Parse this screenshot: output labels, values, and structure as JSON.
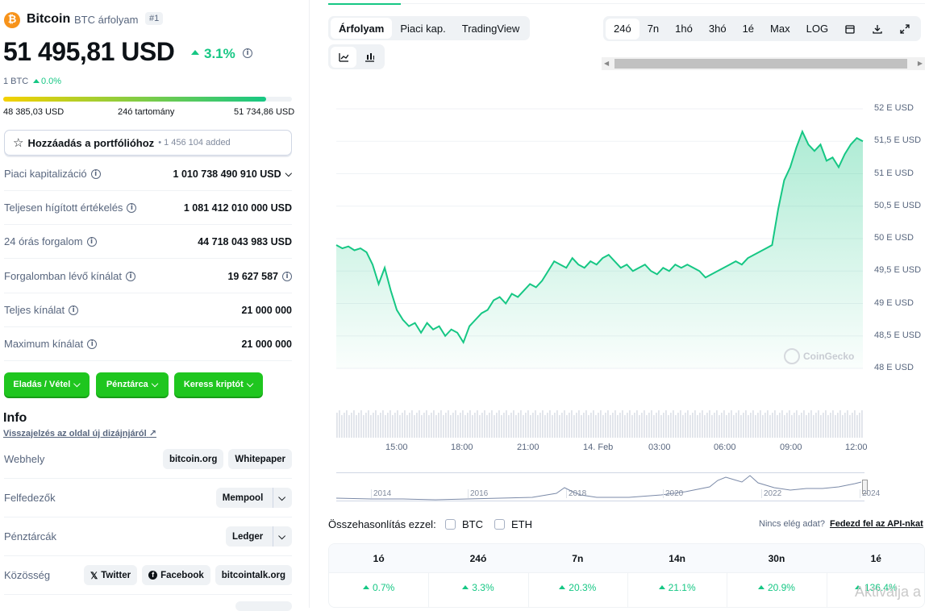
{
  "coin": {
    "name": "Bitcoin",
    "subtitle": "BTC árfolyam",
    "rank": "#1",
    "price": "51 495,81 USD",
    "change": "3.1%",
    "btc_line": "1 BTC",
    "btc_change": "0.0%",
    "colors": {
      "accent": "#f7931a",
      "green": "#16c784"
    }
  },
  "range": {
    "low": "48 385,03 USD",
    "label": "24ó tartomány",
    "high": "51 734,86 USD",
    "position": 0.91
  },
  "portfolio": {
    "label": "Hozzáadás a portfólióhoz",
    "count": "• 1 456 104 added"
  },
  "stats": [
    {
      "label": "Piaci kapitalizáció",
      "value": "1 010 738 490 910 USD"
    },
    {
      "label": "Teljesen hígított értékelés",
      "value": "1 081 412 010 000 USD"
    },
    {
      "label": "24 órás forgalom",
      "value": "44 718 043 983 USD"
    },
    {
      "label": "Forgalomban lévő kínálat",
      "value": "19 627 587"
    },
    {
      "label": "Teljes kínálat",
      "value": "21 000 000"
    },
    {
      "label": "Maximum kínálat",
      "value": "21 000 000"
    }
  ],
  "actions": {
    "buy_sell": "Eladás / Vétel",
    "wallet": "Pénztárca",
    "search": "Keress kriptót"
  },
  "info": {
    "title": "Info",
    "feedback": "Visszajelzés az oldal új dizájnjáról",
    "website_label": "Webhely",
    "website_links": [
      "bitcoin.org",
      "Whitepaper"
    ],
    "explorers_label": "Felfedezők",
    "explorer": "Mempool",
    "wallets_label": "Pénztárcák",
    "wallet": "Ledger",
    "community_label": "Közösség",
    "community": [
      "Twitter",
      "Facebook",
      "bitcointalk.org"
    ]
  },
  "chart_tabs": [
    "Árfolyam",
    "Piaci kap.",
    "TradingView"
  ],
  "range_tabs": [
    "24ó",
    "7n",
    "1hó",
    "3hó",
    "1é",
    "Max",
    "LOG"
  ],
  "chart_data": {
    "type": "area",
    "y_ticks": [
      "52 E USD",
      "51,5 E USD",
      "51 E USD",
      "50,5 E USD",
      "50 E USD",
      "49,5 E USD",
      "49 E USD",
      "48,5 E USD",
      "48 E USD"
    ],
    "ylim": [
      48000,
      52000
    ],
    "x_ticks": [
      "15:00",
      "18:00",
      "21:00",
      "14. Feb",
      "03:00",
      "06:00",
      "09:00",
      "12:00"
    ],
    "series": [
      {
        "values": [
          49900,
          49850,
          49880,
          49820,
          49850,
          49790,
          49600,
          49300,
          49550,
          49200,
          48900,
          48750,
          48650,
          48700,
          48550,
          48700,
          48600,
          48650,
          48500,
          48600,
          48550,
          48400,
          48650,
          48750,
          48850,
          48900,
          49050,
          49100,
          49000,
          49150,
          49100,
          49200,
          49300,
          49250,
          49350,
          49500,
          49650,
          49600,
          49550,
          49700,
          49600,
          49550,
          49650,
          49600,
          49700,
          49750,
          49650,
          49550,
          49600,
          49500,
          49550,
          49600,
          49500,
          49450,
          49550,
          49500,
          49600,
          49550,
          49600,
          49550,
          49500,
          49400,
          49450,
          49500,
          49550,
          49600,
          49650,
          49600,
          49700,
          49750,
          49800,
          49850,
          49900,
          50450,
          50900,
          51100,
          51400,
          51650,
          51450,
          51350,
          51450,
          51200,
          51250,
          51100,
          51300,
          51450,
          51550,
          51500
        ]
      }
    ],
    "watermark": "CoinGecko",
    "overview_years": [
      "2014",
      "2016",
      "2018",
      "2020",
      "2022",
      "2024"
    ]
  },
  "compare": {
    "label": "Összehasonlítás ezzel:",
    "opt1": "BTC",
    "opt2": "ETH",
    "nodata": "Nincs elég adat?",
    "api_link": "Fedezd fel az API-nkat"
  },
  "performance": {
    "headers": [
      "1ó",
      "24ó",
      "7n",
      "14n",
      "30n",
      "1é"
    ],
    "values": [
      "0.7%",
      "3.3%",
      "20.3%",
      "21.1%",
      "20.9%",
      "136.4%"
    ]
  },
  "activation": "Aktiválja a"
}
